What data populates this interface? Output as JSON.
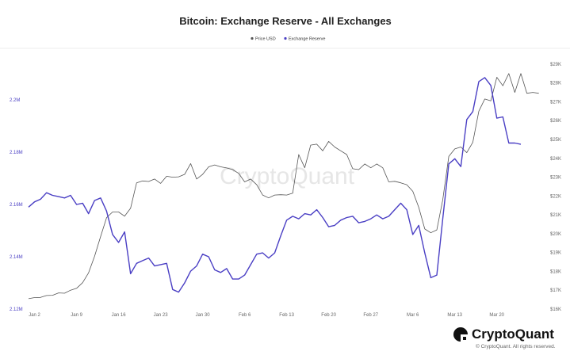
{
  "chart_data": {
    "type": "line",
    "title": "Bitcoin: Exchange Reserve - All Exchanges",
    "watermark": "CryptoQuant",
    "legend": [
      "Price USD",
      "Exchange Reserve"
    ],
    "legend_placement": "top-center",
    "x_tick_labels": [
      "Jan 2",
      "Jan 9",
      "Jan 16",
      "Jan 23",
      "Jan 30",
      "Feb 6",
      "Feb 13",
      "Feb 20",
      "Feb 27",
      "Mar 6",
      "Mar 13",
      "Mar 20"
    ],
    "x_ticks": [
      1,
      8,
      15,
      22,
      29,
      36,
      43,
      50,
      57,
      64,
      71,
      78
    ],
    "x_range": [
      0,
      85.7
    ],
    "y_left": {
      "label": "Exchange Reserve",
      "ticks": [
        "2.12M",
        "2.14M",
        "2.16M",
        "2.18M",
        "2.2M"
      ],
      "tick_values": [
        2120000,
        2140000,
        2160000,
        2180000,
        2200000
      ],
      "range": [
        2120000,
        2200000
      ],
      "color": "#4a3fc4"
    },
    "y_right": {
      "label": "Price USD",
      "ticks": [
        "$16K",
        "$17K",
        "$18K",
        "$19K",
        "$20K",
        "$21K",
        "$22K",
        "$23K",
        "$24K",
        "$25K",
        "$26K",
        "$27K",
        "$28K",
        "$29K"
      ],
      "tick_values": [
        16000,
        17000,
        18000,
        19000,
        20000,
        21000,
        22000,
        23000,
        24000,
        25000,
        26000,
        27000,
        28000,
        29000
      ],
      "range": [
        16000,
        29500
      ],
      "color": "#555555"
    },
    "series": [
      {
        "name": "Price USD",
        "axis": "right",
        "color": "#555555",
        "x_start": 0,
        "values": [
          16550,
          16610,
          16620,
          16720,
          16730,
          16860,
          16840,
          17000,
          17100,
          17400,
          17920,
          18800,
          19850,
          20850,
          21150,
          21150,
          20930,
          21350,
          22700,
          22800,
          22770,
          22900,
          22670,
          23050,
          23000,
          23020,
          23150,
          23720,
          22900,
          23150,
          23550,
          23650,
          23550,
          23490,
          23400,
          23200,
          22750,
          22900,
          22600,
          22050,
          21900,
          22050,
          22070,
          22050,
          22150,
          24200,
          23500,
          24700,
          24750,
          24400,
          24900,
          24600,
          24400,
          24200,
          23450,
          23400,
          23700,
          23500,
          23700,
          23500,
          22750,
          22780,
          22700,
          22600,
          22250,
          21400,
          20250,
          20050,
          20200,
          21800,
          24100,
          24500,
          24600,
          24300,
          24850,
          26500,
          27150,
          27050,
          28300,
          27850,
          28500,
          27500,
          28500,
          27450,
          27500,
          27450
        ]
      },
      {
        "name": "Exchange Reserve",
        "axis": "left",
        "color": "#4a3fc4",
        "x_start": 0,
        "values": [
          2159000,
          2161000,
          2162000,
          2164500,
          2163500,
          2163000,
          2162500,
          2163500,
          2160000,
          2160500,
          2156500,
          2161500,
          2162500,
          2157500,
          2148500,
          2145500,
          2149500,
          2133500,
          2137500,
          2138500,
          2139500,
          2136500,
          2137000,
          2137500,
          2127500,
          2126500,
          2130000,
          2134500,
          2136500,
          2141000,
          2140000,
          2135000,
          2134000,
          2135500,
          2131500,
          2131500,
          2133000,
          2137000,
          2141000,
          2141500,
          2139500,
          2141500,
          2148000,
          2154000,
          2155500,
          2154500,
          2156500,
          2156000,
          2158000,
          2155000,
          2151500,
          2152000,
          2154000,
          2155000,
          2155500,
          2153000,
          2153500,
          2154500,
          2156000,
          2154500,
          2155500,
          2158000,
          2160500,
          2158000,
          2148500,
          2152000,
          2141500,
          2132000,
          2133000,
          2154500,
          2175500,
          2177500,
          2174500,
          2192500,
          2195500,
          2207000,
          2208500,
          2205500,
          2193000,
          2193500,
          2183500,
          2183500,
          2183000
        ]
      }
    ]
  },
  "brand": {
    "name": "CryptoQuant"
  },
  "footer": {
    "copyright": "© CryptoQuant. All rights reserved."
  }
}
